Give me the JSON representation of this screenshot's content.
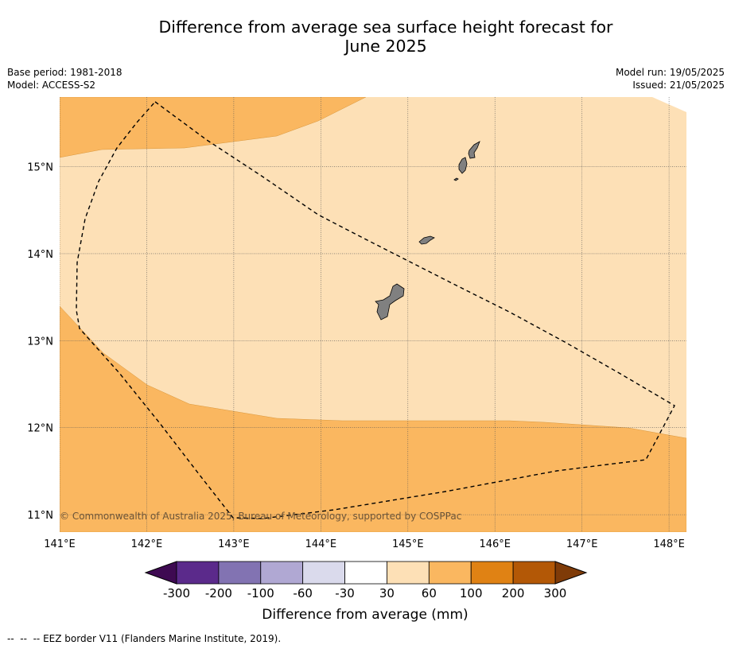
{
  "title": {
    "line1": "Difference from average sea surface height forecast for",
    "line2": "June 2025"
  },
  "meta_left": {
    "base_period": "Base period: 1981-2018",
    "model": "Model: ACCESS-S2"
  },
  "meta_right": {
    "model_run": "Model run: 19/05/2025",
    "issued": "Issued: 21/05/2025"
  },
  "map": {
    "lon_range": [
      141.0,
      148.2
    ],
    "lat_range": [
      10.8,
      15.8
    ],
    "lat_ticks": [
      {
        "value": 15,
        "label": "15°N"
      },
      {
        "value": 14,
        "label": "14°N"
      },
      {
        "value": 13,
        "label": "13°N"
      },
      {
        "value": 12,
        "label": "12°N"
      },
      {
        "value": 11,
        "label": "11°N"
      }
    ],
    "lon_ticks": [
      {
        "value": 141,
        "label": "141°E"
      },
      {
        "value": 142,
        "label": "142°E"
      },
      {
        "value": 143,
        "label": "143°E"
      },
      {
        "value": 144,
        "label": "144°E"
      },
      {
        "value": 145,
        "label": "145°E"
      },
      {
        "value": 146,
        "label": "146°E"
      },
      {
        "value": 147,
        "label": "147°E"
      },
      {
        "value": 148,
        "label": "148°E"
      }
    ],
    "copyright": "© Commonwealth of Australia 2025, Bureau of Meteorology, supported by COSPPac",
    "colors": {
      "band_30_60": "#fde0b6",
      "band_60_100": "#fab760",
      "land": "#808080",
      "eez": "#000000",
      "grid": "#555555"
    },
    "zones": [
      {
        "name": "30 to 60 mm",
        "color": "#fde0b6"
      },
      {
        "name": "60 to 100 mm",
        "color": "#fab760"
      }
    ]
  },
  "colorbar": {
    "label": "Difference from average (mm)",
    "colors": [
      "#3e0a52",
      "#5b2a8b",
      "#8273b2",
      "#b0a8d3",
      "#dadaec",
      "#ffffff",
      "#fde0b6",
      "#fab760",
      "#e08214",
      "#b35806",
      "#7f3b08"
    ],
    "ticks": [
      "-300",
      "-200",
      "-100",
      "-60",
      "-30",
      "30",
      "60",
      "100",
      "200",
      "300"
    ]
  },
  "footer": {
    "legend_symbol": "--  --  --",
    "legend_text": "EEZ border V11 (Flanders Marine Institute, 2019)."
  }
}
